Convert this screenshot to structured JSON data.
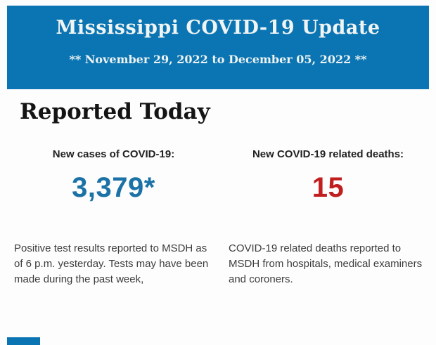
{
  "header": {
    "title": "Mississippi COVID-19 Update",
    "subtitle": "** November 29, 2022 to December 05, 2022 **",
    "background_color": "#0b75b3",
    "text_color": "#f0f4f3"
  },
  "section": {
    "heading": "Reported Today"
  },
  "stats": [
    {
      "label": "New cases of COVID-19:",
      "value": "3,379*",
      "value_color": "#1b72a6",
      "description": "Positive test results reported to MSDH as of 6 p.m. yesterday. Tests may have been made during the past week,"
    },
    {
      "label": "New COVID-19 related deaths:",
      "value": "15",
      "value_color": "#c01e1f",
      "description": "COVID-19 related deaths reported to MSDH from hospitals, medical examiners and coroners."
    }
  ],
  "footer": {
    "next_section_edge_color": "#0b75b3"
  }
}
